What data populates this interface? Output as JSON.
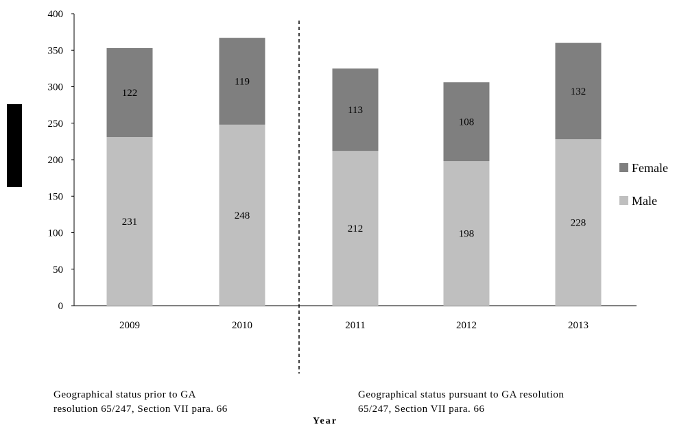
{
  "chart_data": {
    "type": "bar",
    "stacked": true,
    "categories": [
      "2009",
      "2010",
      "2011",
      "2012",
      "2013"
    ],
    "series": [
      {
        "name": "Male",
        "values": [
          231,
          248,
          212,
          198,
          228
        ],
        "color": "#bfbfbf"
      },
      {
        "name": "Female",
        "values": [
          122,
          119,
          113,
          108,
          132
        ],
        "color": "#7f7f7f"
      }
    ],
    "ylim": [
      0,
      400
    ],
    "yticks": [
      0,
      50,
      100,
      150,
      200,
      250,
      300,
      350,
      400
    ],
    "xlabel": "Year",
    "ylabel": "",
    "legend_position": "right",
    "divider_after_category": "2010",
    "annotations": [
      "Geographical status prior to GA\nresolution 65/247, Section VII para. 66",
      "Geographical status pursuant to GA resolution\n65/247, Section VII para. 66"
    ]
  }
}
